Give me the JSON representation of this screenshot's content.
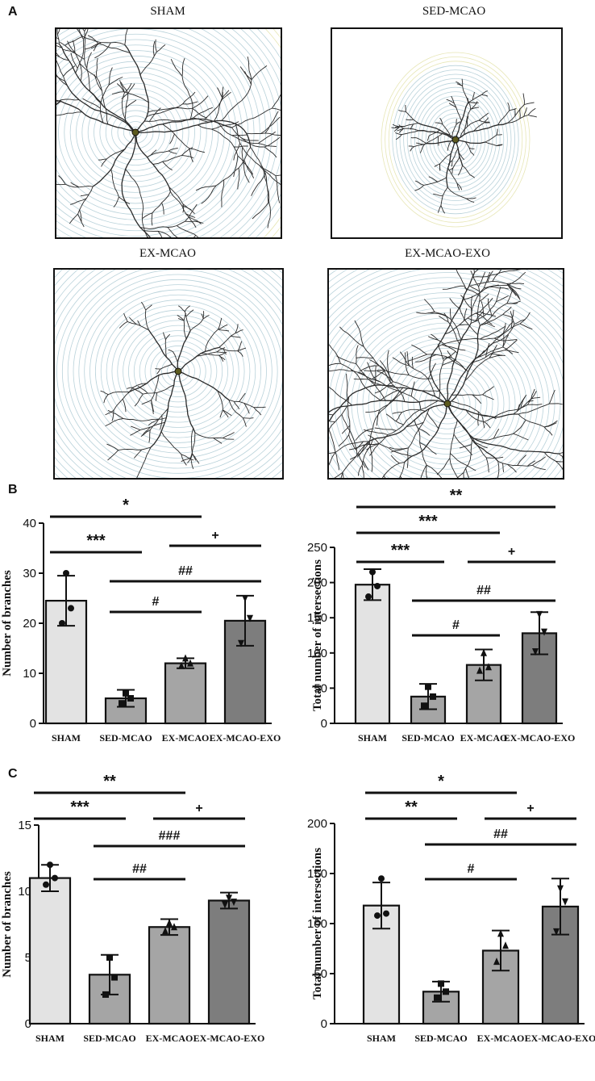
{
  "panels": {
    "a_label": "A",
    "b_label": "B",
    "c_label": "C"
  },
  "neuron_images": [
    {
      "title": "SHAM"
    },
    {
      "title": "SED-MCAO"
    },
    {
      "title": "EX-MCAO"
    },
    {
      "title": "EX-MCAO-EXO"
    }
  ],
  "colors": {
    "bar_sham": "#e3e3e3",
    "bar_sed": "#a5a5a5",
    "bar_ex": "#a5a5a5",
    "bar_exo": "#7d7d7d",
    "ring": "#b9d2da",
    "ring_outer": "#e7e6b5",
    "neuron": "#2a2a2a"
  },
  "chart_data": [
    {
      "type": "bar",
      "panel": "B",
      "categories": [
        "SHAM",
        "SED-MCAO",
        "EX-MCAO",
        "EX-MCAO-EXO"
      ],
      "values": [
        24.5,
        5,
        12,
        20.5
      ],
      "errors": [
        5,
        1.7,
        1,
        5
      ],
      "points": [
        [
          30,
          23,
          20
        ],
        [
          6,
          5,
          4
        ],
        [
          13,
          12,
          11.5
        ],
        [
          25,
          21,
          16
        ]
      ],
      "ylabel": "Number of branches",
      "ylim": [
        0,
        40
      ],
      "yticks": [
        0,
        10,
        20,
        30,
        40
      ],
      "annotations": [
        {
          "from": 0,
          "to": 2,
          "label": "*"
        },
        {
          "from": 0,
          "to": 1,
          "label": "***"
        },
        {
          "from": 2,
          "to": 3,
          "label": "+"
        },
        {
          "from": 1,
          "to": 3,
          "label": "##"
        },
        {
          "from": 1,
          "to": 2,
          "label": "#"
        }
      ]
    },
    {
      "type": "bar",
      "panel": "B",
      "categories": [
        "SHAM",
        "SED-MCAO",
        "EX-MCAO",
        "EX-MCAO-EXO"
      ],
      "values": [
        197,
        38,
        83,
        128
      ],
      "errors": [
        22,
        18,
        22,
        30
      ],
      "points": [
        [
          215,
          195,
          180
        ],
        [
          52,
          38,
          25
        ],
        [
          100,
          80,
          75
        ],
        [
          155,
          130,
          102
        ]
      ],
      "ylabel": "Total number of intersections",
      "ylim": [
        0,
        250
      ],
      "yticks": [
        0,
        50,
        100,
        150,
        200,
        250
      ],
      "annotations": [
        {
          "from": 0,
          "to": 3,
          "label": "**"
        },
        {
          "from": 0,
          "to": 2,
          "label": "***"
        },
        {
          "from": 0,
          "to": 1,
          "label": "***"
        },
        {
          "from": 2,
          "to": 3,
          "label": "+"
        },
        {
          "from": 1,
          "to": 3,
          "label": "##"
        },
        {
          "from": 1,
          "to": 2,
          "label": "#"
        }
      ]
    },
    {
      "type": "bar",
      "panel": "C",
      "categories": [
        "SHAM",
        "SED-MCAO",
        "EX-MCAO",
        "EX-MCAO-EXO"
      ],
      "values": [
        11,
        3.7,
        7.3,
        9.3
      ],
      "errors": [
        1,
        1.5,
        0.6,
        0.6
      ],
      "points": [
        [
          12,
          11,
          10.5
        ],
        [
          5,
          3.5,
          2.2
        ],
        [
          7.6,
          7.3,
          7
        ],
        [
          9.5,
          9.2,
          9
        ]
      ],
      "ylabel": "Number of branches",
      "ylim": [
        0,
        15
      ],
      "yticks": [
        0,
        5,
        10,
        15
      ],
      "annotations": [
        {
          "from": 0,
          "to": 2,
          "label": "**"
        },
        {
          "from": 0,
          "to": 1,
          "label": "***"
        },
        {
          "from": 2,
          "to": 3,
          "label": "+"
        },
        {
          "from": 1,
          "to": 3,
          "label": "###"
        },
        {
          "from": 1,
          "to": 2,
          "label": "##"
        }
      ]
    },
    {
      "type": "bar",
      "panel": "C",
      "categories": [
        "SHAM",
        "SED-MCAO",
        "EX-MCAO",
        "EX-MCAO-EXO"
      ],
      "values": [
        118,
        32,
        73,
        117
      ],
      "errors": [
        23,
        10,
        20,
        28
      ],
      "points": [
        [
          145,
          110,
          108
        ],
        [
          40,
          32,
          26
        ],
        [
          90,
          78,
          62
        ],
        [
          135,
          122,
          92
        ]
      ],
      "ylabel": "Total number of intersections",
      "ylim": [
        0,
        200
      ],
      "yticks": [
        0,
        50,
        100,
        150,
        200
      ],
      "annotations": [
        {
          "from": 0,
          "to": 2,
          "label": "*"
        },
        {
          "from": 0,
          "to": 1,
          "label": "**"
        },
        {
          "from": 2,
          "to": 3,
          "label": "+"
        },
        {
          "from": 1,
          "to": 3,
          "label": "##"
        },
        {
          "from": 1,
          "to": 2,
          "label": "#"
        }
      ]
    }
  ]
}
